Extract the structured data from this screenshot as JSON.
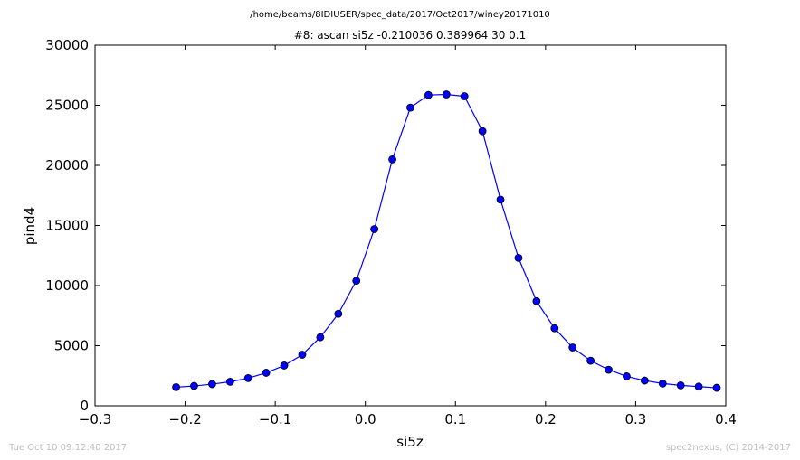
{
  "header": {
    "path": "/home/beams/8IDIUSER/spec_data/2017/Oct2017/winey20171010"
  },
  "footer": {
    "timestamp": "Tue Oct 10 09:12:40 2017",
    "credit": "spec2nexus, (C) 2014-2017"
  },
  "colors": {
    "series": "#0000ff",
    "marker_edge": "#000000",
    "footer_text": "#bfbfbf"
  },
  "chart_data": {
    "type": "line",
    "title": "#8: ascan  si5z -0.210036 0.389964  30 0.1",
    "xlabel": "si5z",
    "ylabel": "pind4",
    "xlim": [
      -0.3,
      0.4
    ],
    "ylim": [
      0,
      30000
    ],
    "grid": false,
    "legend": "none",
    "xticks": [
      -0.3,
      -0.2,
      -0.1,
      0.0,
      0.1,
      0.2,
      0.3,
      0.4
    ],
    "xtick_labels": [
      "−0.3",
      "−0.2",
      "−0.1",
      "0.0",
      "0.1",
      "0.2",
      "0.3",
      "0.4"
    ],
    "yticks": [
      0,
      5000,
      10000,
      15000,
      20000,
      25000,
      30000
    ],
    "ytick_labels": [
      "0",
      "5000",
      "10000",
      "15000",
      "20000",
      "25000",
      "30000"
    ],
    "series": [
      {
        "marker": "circle",
        "x": [
          -0.210036,
          -0.190036,
          -0.170036,
          -0.150036,
          -0.130036,
          -0.110036,
          -0.090036,
          -0.070036,
          -0.050036,
          -0.030036,
          -0.010036,
          0.009964,
          0.029964,
          0.049964,
          0.069964,
          0.089964,
          0.109964,
          0.129964,
          0.149964,
          0.169964,
          0.189964,
          0.209964,
          0.229964,
          0.249964,
          0.269964,
          0.289964,
          0.309964,
          0.329964,
          0.349964,
          0.369964,
          0.389964
        ],
        "y": [
          1550,
          1650,
          1800,
          2000,
          2300,
          2750,
          3350,
          4250,
          5700,
          7650,
          10400,
          14700,
          20500,
          24800,
          25850,
          25900,
          25750,
          22850,
          17150,
          12300,
          8700,
          6450,
          4850,
          3750,
          3000,
          2450,
          2100,
          1850,
          1700,
          1600,
          1500
        ]
      }
    ]
  }
}
